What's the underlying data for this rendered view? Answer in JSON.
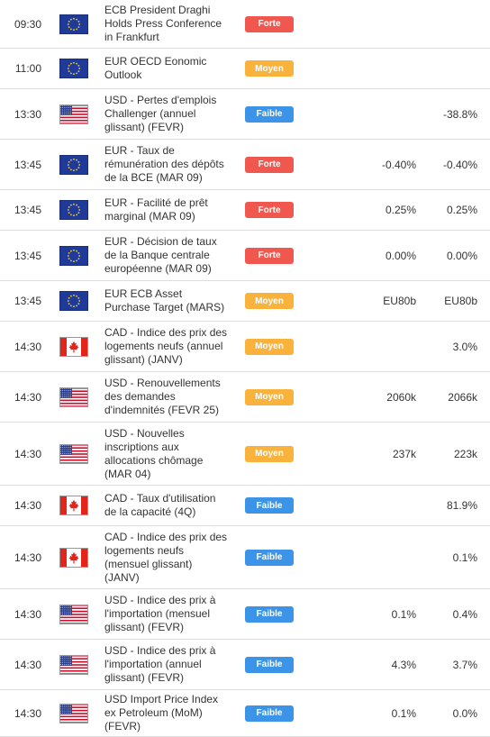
{
  "colors": {
    "high": "#f0584f",
    "medium": "#f9b23b",
    "low": "#3b94e8"
  },
  "events": [
    {
      "time": "09:30",
      "flag": "eu-flag-icon",
      "event": "ECB President Draghi\nHolds Press Conference\nin Frankfurt",
      "importance": "Forte",
      "level": "high",
      "forecast": "",
      "previous": ""
    },
    {
      "time": "11:00",
      "flag": "eu-flag-icon",
      "event": "EUR OECD Eonomic\nOutlook",
      "importance": "Moyen",
      "level": "medium",
      "forecast": "",
      "previous": ""
    },
    {
      "time": "13:30",
      "flag": "us-flag-icon",
      "event": "USD - Pertes d'emplois\nChallenger (annuel\nglissant) (FEVR)",
      "importance": "Faible",
      "level": "low",
      "forecast": "",
      "previous": "-38.8%"
    },
    {
      "time": "13:45",
      "flag": "eu-flag-icon",
      "event": "EUR - Taux de\nrémunération des dépôts\nde la BCE (MAR 09)",
      "importance": "Forte",
      "level": "high",
      "forecast": "-0.40%",
      "previous": "-0.40%"
    },
    {
      "time": "13:45",
      "flag": "eu-flag-icon",
      "event": "EUR - Facilité de prêt\nmarginal (MAR 09)",
      "importance": "Forte",
      "level": "high",
      "forecast": "0.25%",
      "previous": "0.25%"
    },
    {
      "time": "13:45",
      "flag": "eu-flag-icon",
      "event": "EUR - Décision de taux\nde la Banque centrale\neuropéenne (MAR 09)",
      "importance": "Forte",
      "level": "high",
      "forecast": "0.00%",
      "previous": "0.00%"
    },
    {
      "time": "13:45",
      "flag": "eu-flag-icon",
      "event": "EUR ECB Asset\nPurchase Target (MARS)",
      "importance": "Moyen",
      "level": "medium",
      "forecast": "EU80b",
      "previous": "EU80b"
    },
    {
      "time": "14:30",
      "flag": "ca-flag-icon",
      "event": "CAD - Indice des prix des\nlogements neufs (annuel\nglissant) (JANV)",
      "importance": "Moyen",
      "level": "medium",
      "forecast": "",
      "previous": "3.0%"
    },
    {
      "time": "14:30",
      "flag": "us-flag-icon",
      "event": "USD - Renouvellements\ndes demandes\nd'indemnités (FEVR 25)",
      "importance": "Moyen",
      "level": "medium",
      "forecast": "2060k",
      "previous": "2066k"
    },
    {
      "time": "14:30",
      "flag": "us-flag-icon",
      "event": "USD - Nouvelles\ninscriptions aux\nallocations chômage\n(MAR 04)",
      "importance": "Moyen",
      "level": "medium",
      "forecast": "237k",
      "previous": "223k"
    },
    {
      "time": "14:30",
      "flag": "ca-flag-icon",
      "event": "CAD - Taux d'utilisation\nde la capacité (4Q)",
      "importance": "Faible",
      "level": "low",
      "forecast": "",
      "previous": "81.9%"
    },
    {
      "time": "14:30",
      "flag": "ca-flag-icon",
      "event": "CAD - Indice des prix des\nlogements neufs\n(mensuel glissant)\n(JANV)",
      "importance": "Faible",
      "level": "low",
      "forecast": "",
      "previous": "0.1%"
    },
    {
      "time": "14:30",
      "flag": "us-flag-icon",
      "event": "USD - Indice des prix à\nl'importation (mensuel\nglissant) (FEVR)",
      "importance": "Faible",
      "level": "low",
      "forecast": "0.1%",
      "previous": "0.4%"
    },
    {
      "time": "14:30",
      "flag": "us-flag-icon",
      "event": "USD - Indice des prix à\nl'importation (annuel\nglissant) (FEVR)",
      "importance": "Faible",
      "level": "low",
      "forecast": "4.3%",
      "previous": "3.7%"
    },
    {
      "time": "14:30",
      "flag": "us-flag-icon",
      "event": "USD Import Price Index\nex Petroleum (MoM)\n(FEVR)",
      "importance": "Faible",
      "level": "low",
      "forecast": "0.1%",
      "previous": "0.0%"
    }
  ]
}
